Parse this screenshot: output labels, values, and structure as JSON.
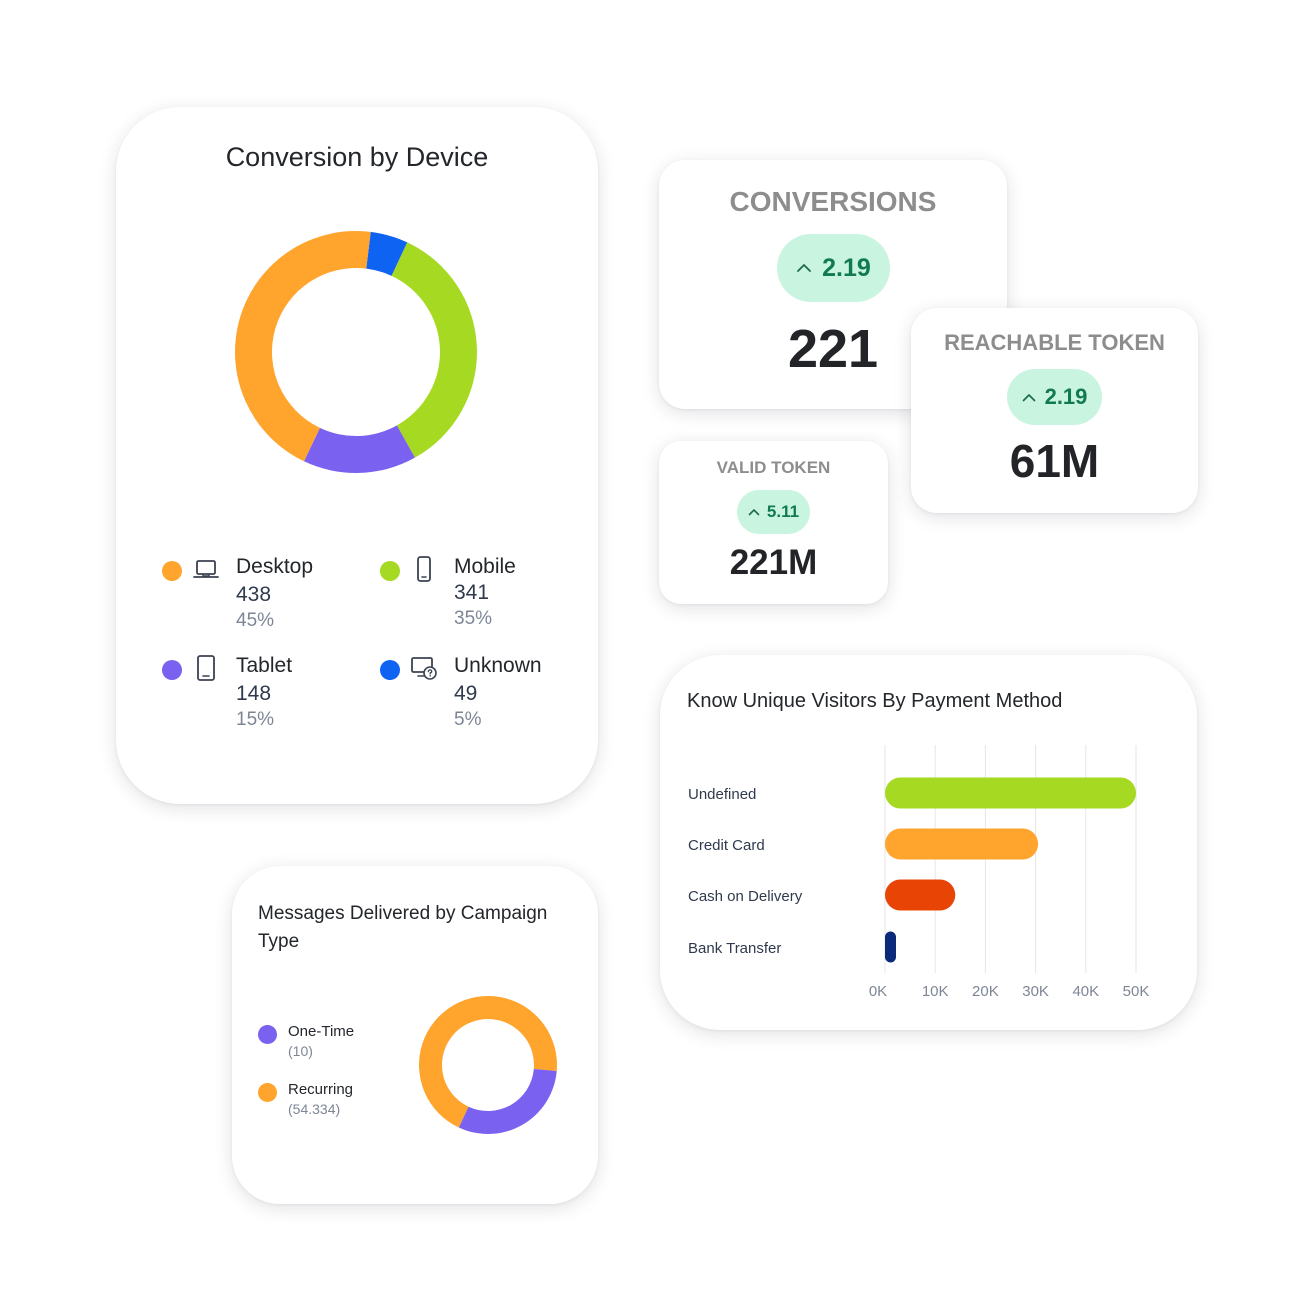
{
  "colors": {
    "desktop": "#ffa52e",
    "mobile": "#a6d921",
    "tablet": "#7b61ef",
    "unknown": "#0f63f2",
    "badge_bg": "#c9f4e0",
    "badge_text": "#117a4e",
    "undefined_bar": "#a6d921",
    "credit_card_bar": "#ffa52e",
    "cod_bar": "#e84406",
    "bank_transfer_bar": "#0b2a7a"
  },
  "device_card": {
    "title": "Conversion by Device",
    "items": [
      {
        "name": "Desktop",
        "count": "438",
        "percent": "45%",
        "icon": "laptop-icon"
      },
      {
        "name": "Mobile",
        "count": "341",
        "percent": "35%",
        "icon": "phone-icon"
      },
      {
        "name": "Tablet",
        "count": "148",
        "percent": "15%",
        "icon": "tablet-icon"
      },
      {
        "name": "Unknown",
        "count": "49",
        "percent": "5%",
        "icon": "unknown-device-icon"
      }
    ]
  },
  "kpis": {
    "conversions": {
      "title": "CONVERSIONS",
      "change": "2.19",
      "value": "221",
      "icon": "chevron-up-icon"
    },
    "reachable_token": {
      "title": "REACHABLE TOKEN",
      "change": "2.19",
      "value": "61M",
      "icon": "chevron-up-icon"
    },
    "valid_token": {
      "title": "VALID TOKEN",
      "change": "5.11",
      "value": "221M",
      "icon": "chevron-up-icon"
    }
  },
  "payment_card": {
    "title": "Know Unique Visitors By Payment Method"
  },
  "messages_card": {
    "title": "Messages Delivered by Campaign Type",
    "items": [
      {
        "name": "One-Time",
        "value": "(10)"
      },
      {
        "name": "Recurring",
        "value": "(54.334)"
      }
    ]
  },
  "chart_data": [
    {
      "type": "pie",
      "title": "Conversion by Device",
      "categories": [
        "Desktop",
        "Mobile",
        "Tablet",
        "Unknown"
      ],
      "values": [
        438,
        341,
        148,
        49
      ],
      "percents": [
        45,
        35,
        15,
        5
      ],
      "colors": [
        "#ffa52e",
        "#a6d921",
        "#7b61ef",
        "#0f63f2"
      ]
    },
    {
      "type": "bar",
      "orientation": "horizontal",
      "title": "Know Unique Visitors By Payment Method",
      "categories": [
        "Undefined",
        "Credit Card",
        "Cash on Delivery",
        "Bank Transfer"
      ],
      "values": [
        50000,
        30500,
        14000,
        2000
      ],
      "xlim": [
        0,
        50000
      ],
      "xticks": [
        "0K",
        "10K",
        "20K",
        "30K",
        "40K",
        "50K"
      ],
      "grid": true,
      "colors": [
        "#a6d921",
        "#ffa52e",
        "#e84406",
        "#0b2a7a"
      ]
    },
    {
      "type": "pie",
      "title": "Messages Delivered by Campaign Type",
      "categories": [
        "One-Time",
        "Recurring"
      ],
      "values": [
        10,
        54.334
      ],
      "colors": [
        "#7b61ef",
        "#ffa52e"
      ]
    }
  ]
}
